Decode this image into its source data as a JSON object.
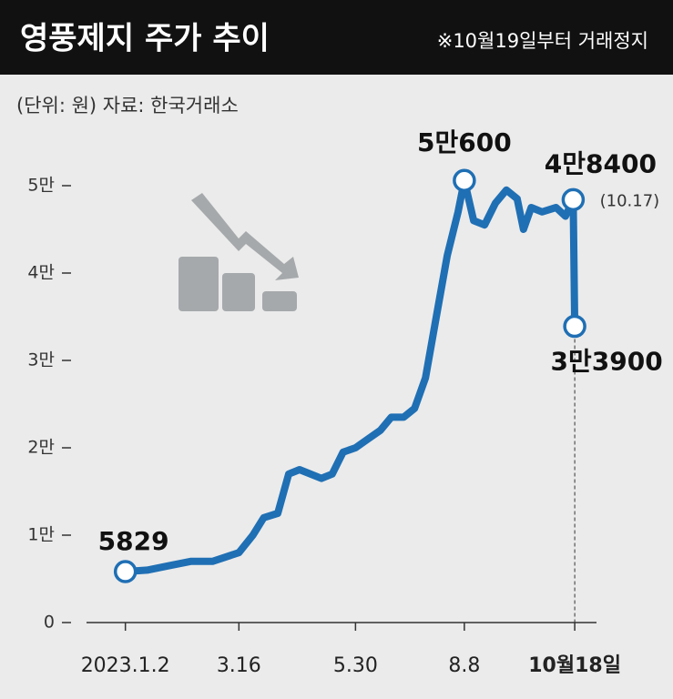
{
  "chart_data": {
    "type": "line",
    "title": "영풍제지 주가 추이",
    "note": "※10월19일부터 거래정지",
    "subtitle": "(단위: 원)  자료: 한국거래소",
    "x": [
      "2023-01-02",
      "2023-01-16",
      "2023-01-30",
      "2023-02-13",
      "2023-02-27",
      "2023-03-16",
      "2023-03-25",
      "2023-04-01",
      "2023-04-10",
      "2023-04-17",
      "2023-04-24",
      "2023-05-08",
      "2023-05-15",
      "2023-05-22",
      "2023-05-30",
      "2023-06-07",
      "2023-06-15",
      "2023-06-22",
      "2023-06-30",
      "2023-07-07",
      "2023-07-14",
      "2023-07-21",
      "2023-07-28",
      "2023-08-04",
      "2023-08-08",
      "2023-08-14",
      "2023-08-21",
      "2023-08-28",
      "2023-09-04",
      "2023-09-11",
      "2023-09-15",
      "2023-09-20",
      "2023-09-27",
      "2023-10-06",
      "2023-10-12",
      "2023-10-17",
      "2023-10-18"
    ],
    "series": [
      {
        "name": "영풍제지",
        "color": "#1f6fb4",
        "values": [
          5829,
          6000,
          6500,
          7000,
          7000,
          8000,
          10000,
          12000,
          12500,
          17000,
          17500,
          16500,
          17000,
          19500,
          20000,
          21000,
          22000,
          23500,
          23500,
          24500,
          28000,
          35000,
          42000,
          47000,
          50600,
          46000,
          45500,
          48000,
          49500,
          48500,
          45000,
          47500,
          47000,
          47500,
          46500,
          48400,
          33900
        ]
      }
    ],
    "xlim": [
      "2022-12-08",
      "2023-11-01"
    ],
    "xticks": [
      {
        "value": "2023-01-02",
        "label": "2023.1.2"
      },
      {
        "value": "2023-03-16",
        "label": "3.16"
      },
      {
        "value": "2023-05-30",
        "label": "5.30"
      },
      {
        "value": "2023-08-08",
        "label": "8.8"
      },
      {
        "value": "2023-10-18",
        "label": "10월18일"
      }
    ],
    "ylim": [
      0,
      55000
    ],
    "yticks": [
      {
        "value": 0,
        "label": "0"
      },
      {
        "value": 10000,
        "label": "1만"
      },
      {
        "value": 20000,
        "label": "2만"
      },
      {
        "value": 30000,
        "label": "3만"
      },
      {
        "value": 40000,
        "label": "4만"
      },
      {
        "value": 50000,
        "label": "5만"
      }
    ],
    "annotations": [
      {
        "text": "5829",
        "x": "2023-01-02"
      },
      {
        "text": "5만600",
        "x": "2023-08-08"
      },
      {
        "text": "4만8400",
        "x": "2023-10-17",
        "note": "(10.17)"
      },
      {
        "text": "3만3900",
        "x": "2023-10-18"
      }
    ]
  }
}
